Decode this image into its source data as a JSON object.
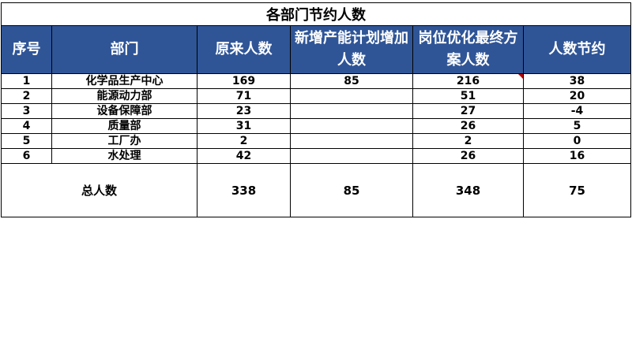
{
  "title": "各部门节约人数",
  "headers": [
    "序号",
    "部门",
    "原来人数",
    "新增产能计划增加人数",
    "岗位优化最终方案人数",
    "人数节约"
  ],
  "rows": [
    {
      "no": "1",
      "dept": "化学品生产中心",
      "orig": "169",
      "added": "85",
      "final": "216",
      "saved": "38"
    },
    {
      "no": "2",
      "dept": "能源动力部",
      "orig": "71",
      "added": "",
      "final": "51",
      "saved": "20"
    },
    {
      "no": "3",
      "dept": "设备保障部",
      "orig": "23",
      "added": "",
      "final": "27",
      "saved": "-4"
    },
    {
      "no": "4",
      "dept": "质量部",
      "orig": "31",
      "added": "",
      "final": "26",
      "saved": "5"
    },
    {
      "no": "5",
      "dept": "工厂办",
      "orig": "2",
      "added": "",
      "final": "2",
      "saved": "0"
    },
    {
      "no": "6",
      "dept": "水处理",
      "orig": "42",
      "added": "",
      "final": "26",
      "saved": "16"
    }
  ],
  "total": {
    "label": "总人数",
    "orig": "338",
    "added": "85",
    "final": "348",
    "saved": "75"
  },
  "colors": {
    "header_bg": "#2f5597",
    "header_text": "#ffffff",
    "comment_marker": "#c00000"
  }
}
